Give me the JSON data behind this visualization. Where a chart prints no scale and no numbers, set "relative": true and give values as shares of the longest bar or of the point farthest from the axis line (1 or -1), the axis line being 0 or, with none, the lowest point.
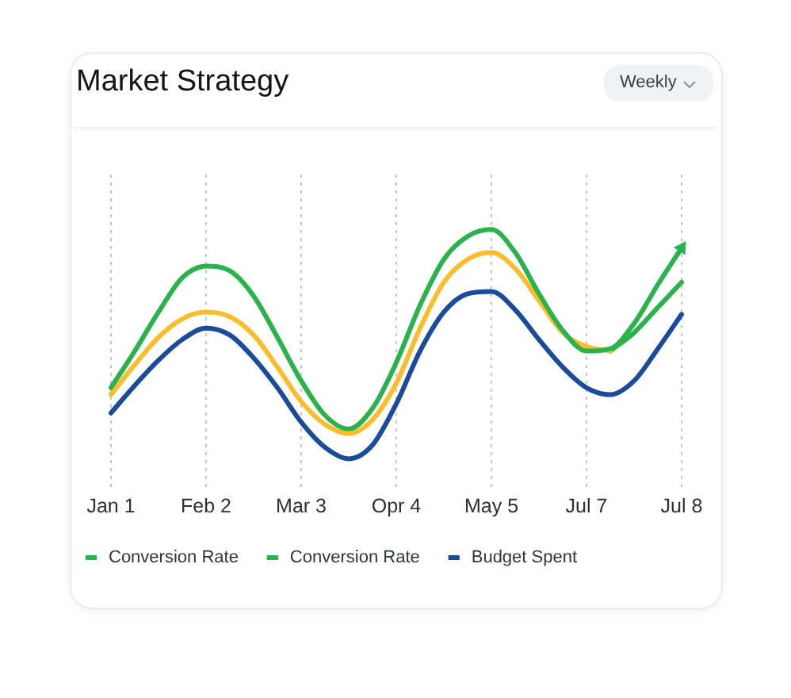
{
  "chart_data": {
    "type": "line",
    "title": "Market Strategy",
    "annotations": [
      "Weekly"
    ],
    "relative": true,
    "categories": [
      "Jan 1",
      null,
      null,
      null,
      "Feb 2",
      null,
      null,
      null,
      "Mar 3",
      null,
      null,
      null,
      "Opr 4",
      null,
      null,
      null,
      "May 5",
      null,
      null,
      null,
      "Jul 7",
      null,
      null,
      null,
      "Jul 8"
    ],
    "grid": "x",
    "legend": "bottom",
    "marker": "none",
    "line_style": "solid",
    "series": [
      {
        "name": "Conversion Rate",
        "color": "#2ab34d",
        "values": [
          0.31,
          0.47,
          0.64,
          0.79,
          0.84,
          0.82,
          0.71,
          0.53,
          0.34,
          0.19,
          0.13,
          0.22,
          0.42,
          0.67,
          0.87,
          0.97,
          1,
          0.9,
          0.72,
          0.56,
          0.47,
          0.48,
          0.59,
          0.76,
          0.92
        ]
      },
      {
        "color": "#fbbd2c",
        "values": [
          0.28,
          0.41,
          0.53,
          0.61,
          0.64,
          0.62,
          0.54,
          0.4,
          0.25,
          0.15,
          0.11,
          0.17,
          0.33,
          0.57,
          0.77,
          0.87,
          0.9,
          0.83,
          0.69,
          0.55,
          0.49,
          0.47,
          null,
          null,
          null
        ]
      },
      {
        "name": "Conversion Rate",
        "color": "#2ab34d",
        "values": [
          null,
          null,
          null,
          null,
          null,
          null,
          null,
          null,
          null,
          null,
          null,
          null,
          null,
          null,
          null,
          null,
          null,
          null,
          null,
          null,
          null,
          0.47,
          0.55,
          0.66,
          0.77
        ]
      },
      {
        "name": "Budget Spent",
        "color": "#1b4b9b",
        "values": [
          0.2,
          0.32,
          0.43,
          0.52,
          0.57,
          0.54,
          0.44,
          0.31,
          0.16,
          0.05,
          0,
          0.06,
          0.24,
          0.47,
          0.64,
          0.72,
          0.73,
          0.65,
          0.52,
          0.4,
          0.31,
          0.28,
          0.34,
          0.48,
          0.63
        ]
      }
    ]
  }
}
